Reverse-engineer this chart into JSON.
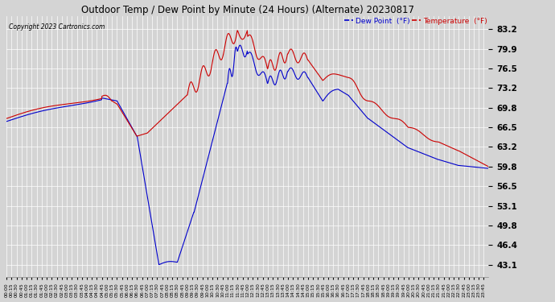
{
  "title": "Outdoor Temp / Dew Point by Minute (24 Hours) (Alternate) 20230817",
  "copyright": "Copyright 2023 Cartronics.com",
  "legend_dew": "Dew Point  (°F)",
  "legend_temp": "Temperature  (°F)",
  "yticks": [
    43.1,
    46.4,
    49.8,
    53.1,
    56.5,
    59.8,
    63.2,
    66.5,
    69.8,
    73.2,
    76.5,
    79.9,
    83.2
  ],
  "ylim": [
    41.0,
    85.5
  ],
  "bg_color": "#d4d4d4",
  "plot_bg_color": "#d4d4d4",
  "grid_color": "#ffffff",
  "temp_color": "#cc0000",
  "dew_color": "#0000cc",
  "title_color": "#000000",
  "copyright_color": "#000000",
  "legend_dew_color": "#0000cc",
  "legend_temp_color": "#cc0000",
  "total_minutes": 1440
}
